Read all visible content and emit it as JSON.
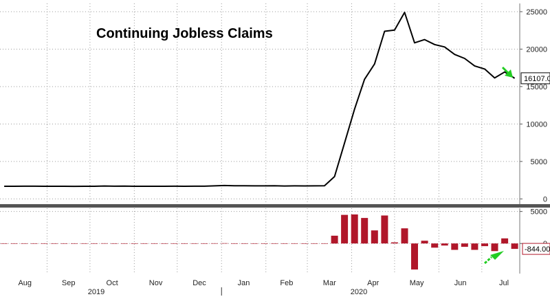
{
  "colors": {
    "line": "#000000",
    "bar": "#b0172a",
    "arrow": "#22cc22",
    "grid": "#9a9a9a",
    "separator": "#555555"
  },
  "chart_data": [
    {
      "type": "line",
      "title": "Continuing Jobless Claims",
      "xlabel": "",
      "ylabel": "",
      "x": [
        "2019-08-02",
        "2019-08-09",
        "2019-08-16",
        "2019-08-23",
        "2019-08-30",
        "2019-09-06",
        "2019-09-13",
        "2019-09-20",
        "2019-09-27",
        "2019-10-04",
        "2019-10-11",
        "2019-10-18",
        "2019-10-25",
        "2019-11-01",
        "2019-11-08",
        "2019-11-15",
        "2019-11-22",
        "2019-11-29",
        "2019-12-06",
        "2019-12-13",
        "2019-12-20",
        "2019-12-27",
        "2020-01-03",
        "2020-01-10",
        "2020-01-17",
        "2020-01-24",
        "2020-01-31",
        "2020-02-07",
        "2020-02-14",
        "2020-02-21",
        "2020-02-28",
        "2020-03-06",
        "2020-03-13",
        "2020-03-20",
        "2020-03-27",
        "2020-04-03",
        "2020-04-10",
        "2020-04-17",
        "2020-04-24",
        "2020-05-01",
        "2020-05-08",
        "2020-05-15",
        "2020-05-22",
        "2020-05-29",
        "2020-06-05",
        "2020-06-12",
        "2020-06-19",
        "2020-06-26",
        "2020-07-03",
        "2020-07-10",
        "2020-07-17",
        "2020-07-24"
      ],
      "values": [
        1690,
        1690,
        1700,
        1695,
        1690,
        1690,
        1690,
        1680,
        1690,
        1690,
        1720,
        1700,
        1710,
        1690,
        1690,
        1690,
        1690,
        1700,
        1690,
        1700,
        1700,
        1740,
        1790,
        1760,
        1750,
        1740,
        1740,
        1750,
        1720,
        1740,
        1730,
        1740,
        1760,
        2980,
        7450,
        11980,
        15970,
        18010,
        22380,
        22550,
        24910,
        20840,
        21270,
        20610,
        20290,
        19290,
        18760,
        17760,
        17340,
        16150,
        16950,
        16107
      ],
      "ylim": [
        -700,
        26100
      ],
      "y_ticks": [
        "0",
        "5000",
        "10000",
        "15000",
        "20000",
        "25000"
      ],
      "last_value_label": "16107.0",
      "grid": true
    },
    {
      "type": "bar",
      "title": "",
      "x": [
        "2019-08-02",
        "2019-08-09",
        "2019-08-16",
        "2019-08-23",
        "2019-08-30",
        "2019-09-06",
        "2019-09-13",
        "2019-09-20",
        "2019-09-27",
        "2019-10-04",
        "2019-10-11",
        "2019-10-18",
        "2019-10-25",
        "2019-11-01",
        "2019-11-08",
        "2019-11-15",
        "2019-11-22",
        "2019-11-29",
        "2019-12-06",
        "2019-12-13",
        "2019-12-20",
        "2019-12-27",
        "2020-01-03",
        "2020-01-10",
        "2020-01-17",
        "2020-01-24",
        "2020-01-31",
        "2020-02-07",
        "2020-02-14",
        "2020-02-21",
        "2020-02-28",
        "2020-03-06",
        "2020-03-13",
        "2020-03-20",
        "2020-03-27",
        "2020-04-03",
        "2020-04-10",
        "2020-04-17",
        "2020-04-24",
        "2020-05-01",
        "2020-05-08",
        "2020-05-15",
        "2020-05-22",
        "2020-05-29",
        "2020-06-05",
        "2020-06-12",
        "2020-06-19",
        "2020-06-26",
        "2020-07-03",
        "2020-07-10",
        "2020-07-17",
        "2020-07-24"
      ],
      "values": [
        0,
        0,
        10,
        -5,
        -5,
        0,
        0,
        -10,
        10,
        0,
        30,
        -20,
        10,
        -20,
        0,
        0,
        0,
        10,
        -10,
        10,
        0,
        40,
        50,
        -30,
        -10,
        -10,
        0,
        10,
        -30,
        20,
        -10,
        10,
        20,
        1220,
        4470,
        4530,
        3990,
        2040,
        4370,
        170,
        2360,
        -4070,
        430,
        -660,
        -320,
        -1000,
        -530,
        -1000,
        -420,
        -1190,
        800,
        -844
      ],
      "ylim": [
        -4700,
        5500
      ],
      "y_ticks": [
        "0",
        "5000"
      ],
      "last_value_label": "-844.00",
      "grid": true
    }
  ],
  "x_axis": {
    "month_labels": [
      "Aug",
      "Sep",
      "Oct",
      "Nov",
      "Dec",
      "Jan",
      "Feb",
      "Mar",
      "Apr",
      "May",
      "Jun",
      "Jul"
    ],
    "year_labels": [
      "2019",
      "2020"
    ]
  },
  "annotations": {
    "top_arrow": "green-arrow-down-right",
    "bottom_arrow": "green-arrow-up-right"
  }
}
